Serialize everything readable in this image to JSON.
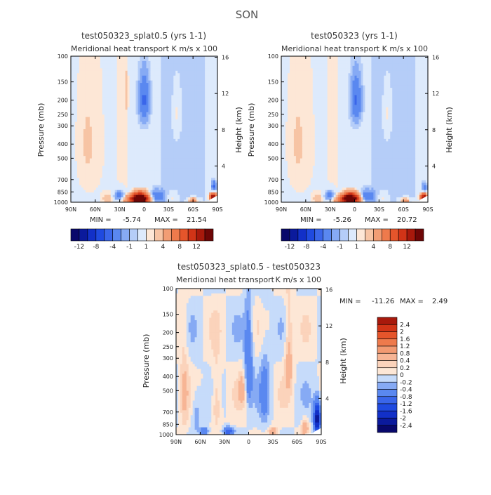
{
  "season_title": "SON",
  "palette": {
    "values": [
      -12,
      -10,
      -8,
      -6,
      -4,
      -2,
      -1,
      -0.5,
      0.5,
      1,
      2,
      4,
      6,
      8,
      10,
      12
    ],
    "colors_top": [
      "#08086b",
      "#0b1a9c",
      "#1230c8",
      "#1f4ae0",
      "#3a66ea",
      "#5a88f0",
      "#86aaf4",
      "#b5cdf8",
      "#ddeafc",
      "#fde7d6",
      "#f7c4a4",
      "#f29d74",
      "#ee7a4c",
      "#e5552b",
      "#d13417",
      "#a8190c",
      "#6e0606"
    ],
    "colors_diff": [
      "#08086b",
      "#0b1a9c",
      "#1230c8",
      "#1f4ae0",
      "#3a66ea",
      "#5a88f0",
      "#86aaf4",
      "#b5cdf8",
      "#ddeafc",
      "#fde7d6",
      "#f7c4a4",
      "#f29d74",
      "#ee7a4c",
      "#e5552b",
      "#d13417",
      "#a8190c",
      "#6e0606"
    ]
  },
  "chart_data": [
    {
      "type": "heatmap",
      "title": "test050323_splat0.5 (yrs 1-1)",
      "subtitle_left": "Meridional heat transport",
      "subtitle_right": "K m/s x 100",
      "xlabel": "",
      "ylabel": "Pressure (mb)",
      "ylabel_right": "Height (km)",
      "x_ticks": [
        "90N",
        "60N",
        "30N",
        "0",
        "30S",
        "60S",
        "90S"
      ],
      "y_ticks": [
        "100",
        "150",
        "200",
        "250",
        "300",
        "400",
        "500",
        "700",
        "850",
        "1000"
      ],
      "y_ticks_values": [
        100,
        150,
        200,
        250,
        300,
        400,
        500,
        700,
        850,
        1000
      ],
      "right_ticks": [
        "16",
        "12",
        "8",
        "4"
      ],
      "min_label": "MIN =",
      "min_value": "-5.74",
      "max_label": "MAX =",
      "max_value": "21.54",
      "colorbar_labels": [
        "-12",
        "-8",
        "-4",
        "-1",
        "1",
        "4",
        "8",
        "12"
      ],
      "blobs": [
        {
          "lat": 5,
          "p": 930,
          "v": 12,
          "wl": 10,
          "wp": 90
        },
        {
          "lat": 8,
          "p": 960,
          "v": 8,
          "wl": 16,
          "wp": 60
        },
        {
          "lat": -15,
          "p": 920,
          "v": -4,
          "wl": 8,
          "wp": 90
        },
        {
          "lat": 30,
          "p": 910,
          "v": -4,
          "wl": 7,
          "wp": 80
        },
        {
          "lat": 45,
          "p": 950,
          "v": 1.2,
          "wl": 6,
          "wp": 80
        },
        {
          "lat": -35,
          "p": 940,
          "v": 1.2,
          "wl": 5,
          "wp": 80
        },
        {
          "lat": -60,
          "p": 970,
          "v": 6,
          "wl": 5,
          "wp": 30
        },
        {
          "lat": -85,
          "p": 930,
          "v": 14,
          "wl": 4,
          "wp": 60
        },
        {
          "lat": -86,
          "p": 780,
          "v": -4,
          "wl": 3,
          "wp": 70
        },
        {
          "lat": 0,
          "p": 200,
          "v": -4,
          "wl": 6,
          "wp": 70
        },
        {
          "lat": 20,
          "p": 180,
          "v": 1.2,
          "wl": 3,
          "wp": 70
        },
        {
          "lat": -40,
          "p": 250,
          "v": 1.2,
          "wl": 4,
          "wp": 80
        },
        {
          "lat": 70,
          "p": 400,
          "v": 0.8,
          "wl": 14,
          "wp": 400
        }
      ]
    },
    {
      "type": "heatmap",
      "title": "test050323 (yrs 1-1)",
      "subtitle_left": "Meridional heat transport",
      "subtitle_right": "K m/s x 100",
      "xlabel": "",
      "ylabel": "Pressure (mb)",
      "ylabel_right": "Height (km)",
      "x_ticks": [
        "90N",
        "60N",
        "30N",
        "0",
        "30S",
        "60S",
        "90S"
      ],
      "y_ticks": [
        "100",
        "150",
        "200",
        "250",
        "300",
        "400",
        "500",
        "700",
        "850",
        "1000"
      ],
      "y_ticks_values": [
        100,
        150,
        200,
        250,
        300,
        400,
        500,
        700,
        850,
        1000
      ],
      "right_ticks": [
        "16",
        "12",
        "8",
        "4"
      ],
      "min_label": "MIN =",
      "min_value": "-5.26",
      "max_label": "MAX =",
      "max_value": "20.72",
      "colorbar_labels": [
        "-12",
        "-8",
        "-4",
        "-1",
        "1",
        "4",
        "8",
        "12"
      ],
      "blobs": [
        {
          "lat": 5,
          "p": 930,
          "v": 11,
          "wl": 10,
          "wp": 90
        },
        {
          "lat": 8,
          "p": 960,
          "v": 8,
          "wl": 16,
          "wp": 60
        },
        {
          "lat": -15,
          "p": 920,
          "v": -4,
          "wl": 8,
          "wp": 90
        },
        {
          "lat": 30,
          "p": 910,
          "v": -4,
          "wl": 7,
          "wp": 80
        },
        {
          "lat": 45,
          "p": 950,
          "v": 1.2,
          "wl": 6,
          "wp": 80
        },
        {
          "lat": -35,
          "p": 940,
          "v": 1.2,
          "wl": 5,
          "wp": 80
        },
        {
          "lat": -62,
          "p": 970,
          "v": 5,
          "wl": 5,
          "wp": 30
        },
        {
          "lat": -85,
          "p": 930,
          "v": 13,
          "wl": 4,
          "wp": 60
        },
        {
          "lat": -86,
          "p": 800,
          "v": -3,
          "wl": 3,
          "wp": 70
        },
        {
          "lat": -2,
          "p": 200,
          "v": -4,
          "wl": 6,
          "wp": 70
        },
        {
          "lat": -40,
          "p": 250,
          "v": 1.2,
          "wl": 4,
          "wp": 80
        },
        {
          "lat": 70,
          "p": 400,
          "v": 0.8,
          "wl": 14,
          "wp": 400
        }
      ]
    },
    {
      "type": "heatmap",
      "title": "test050323_splat0.5 - test050323",
      "subtitle_left": "Meridional heat transport",
      "subtitle_right": "K m/s x 100",
      "xlabel": "",
      "ylabel": "Pressure (mb)",
      "ylabel_right": "Height (km)",
      "x_ticks": [
        "90N",
        "60N",
        "30N",
        "0",
        "30S",
        "60S",
        "90S"
      ],
      "y_ticks": [
        "100",
        "150",
        "200",
        "250",
        "300",
        "400",
        "500",
        "700",
        "850",
        "1000"
      ],
      "y_ticks_values": [
        100,
        150,
        200,
        250,
        300,
        400,
        500,
        700,
        850,
        1000
      ],
      "right_ticks": [
        "16",
        "12",
        "8",
        "4"
      ],
      "min_label": "MIN =",
      "min_value": "-11.26",
      "max_label": "MAX =",
      "max_value": "2.49",
      "colorbar_levels": [
        "2.4",
        "2",
        "1.6",
        "1.2",
        "0.8",
        "0.4",
        "0.2",
        "0",
        "-0.2",
        "-0.4",
        "-0.8",
        "-1.2",
        "-1.6",
        "-2",
        "-2.4"
      ],
      "blobs": [
        {
          "lat": -85,
          "p": 780,
          "v": -2.4,
          "wl": 4,
          "wp": 180
        },
        {
          "lat": -88,
          "p": 990,
          "v": -2.4,
          "wl": 3,
          "wp": 20
        },
        {
          "lat": -70,
          "p": 900,
          "v": 0.8,
          "wl": 4,
          "wp": 120
        },
        {
          "lat": 0,
          "p": 350,
          "v": -0.8,
          "wl": 5,
          "wp": 250
        },
        {
          "lat": 8,
          "p": 500,
          "v": 0.6,
          "wl": 4,
          "wp": 120
        },
        {
          "lat": -20,
          "p": 500,
          "v": -0.5,
          "wl": 6,
          "wp": 300
        },
        {
          "lat": 40,
          "p": 600,
          "v": 0.5,
          "wl": 6,
          "wp": 300
        },
        {
          "lat": 65,
          "p": 700,
          "v": -0.4,
          "wl": 6,
          "wp": 250
        },
        {
          "lat": 80,
          "p": 500,
          "v": 0.4,
          "wl": 5,
          "wp": 400
        },
        {
          "lat": -50,
          "p": 300,
          "v": 0.6,
          "wl": 5,
          "wp": 200
        },
        {
          "lat": 25,
          "p": 950,
          "v": -1.2,
          "wl": 6,
          "wp": 60
        },
        {
          "lat": -30,
          "p": 950,
          "v": 0.8,
          "wl": 5,
          "wp": 60
        },
        {
          "lat": 55,
          "p": 950,
          "v": -0.8,
          "wl": 5,
          "wp": 60
        }
      ]
    }
  ]
}
